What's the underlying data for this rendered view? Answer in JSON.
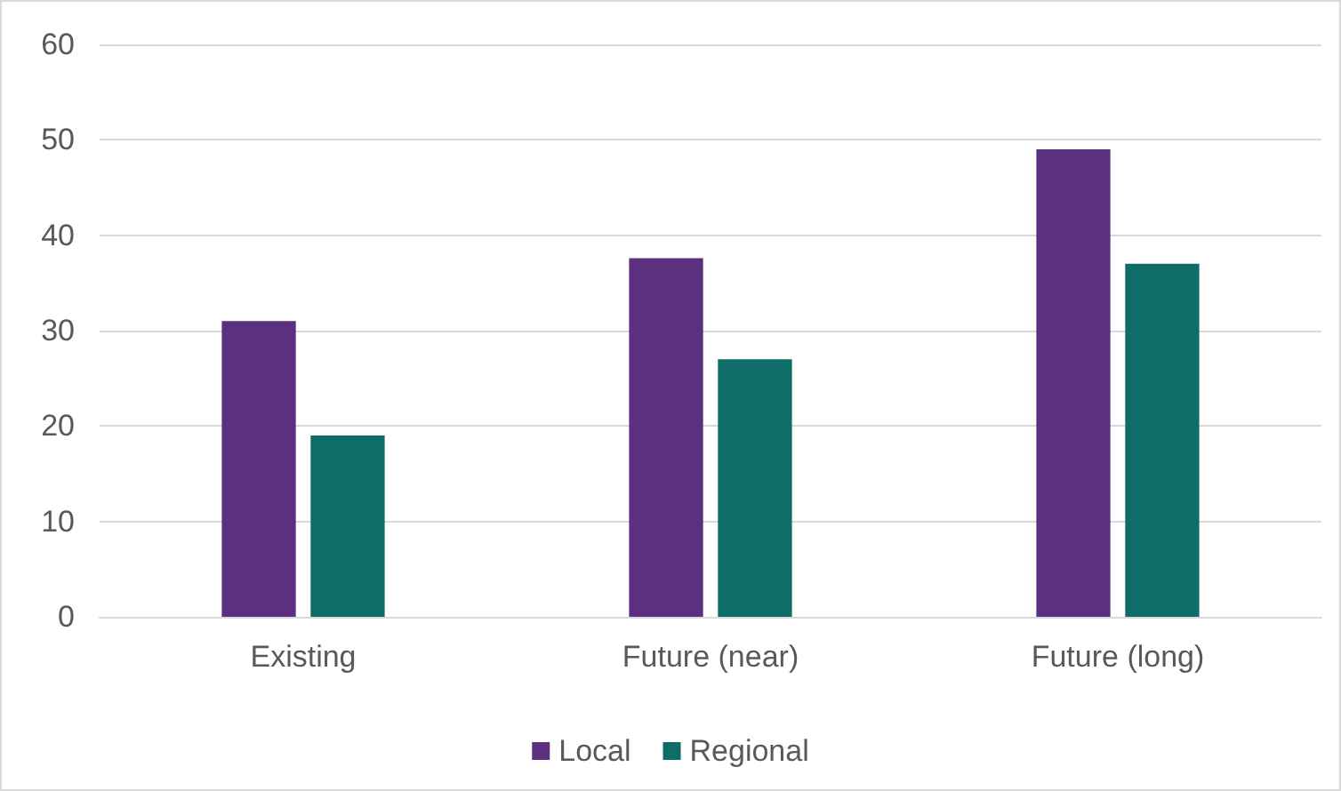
{
  "chart_data": {
    "type": "bar",
    "categories": [
      "Existing",
      "Future (near)",
      "Future (long)"
    ],
    "series": [
      {
        "name": "Local",
        "color": "#5b317f",
        "values": [
          31,
          37.6,
          49
        ]
      },
      {
        "name": "Regional",
        "color": "#0e6d66",
        "values": [
          19,
          27,
          37
        ]
      }
    ],
    "ylim": [
      0,
      60
    ],
    "yticks": [
      0,
      10,
      20,
      30,
      40,
      50,
      60
    ],
    "grid": "y",
    "legend": "bottom"
  }
}
